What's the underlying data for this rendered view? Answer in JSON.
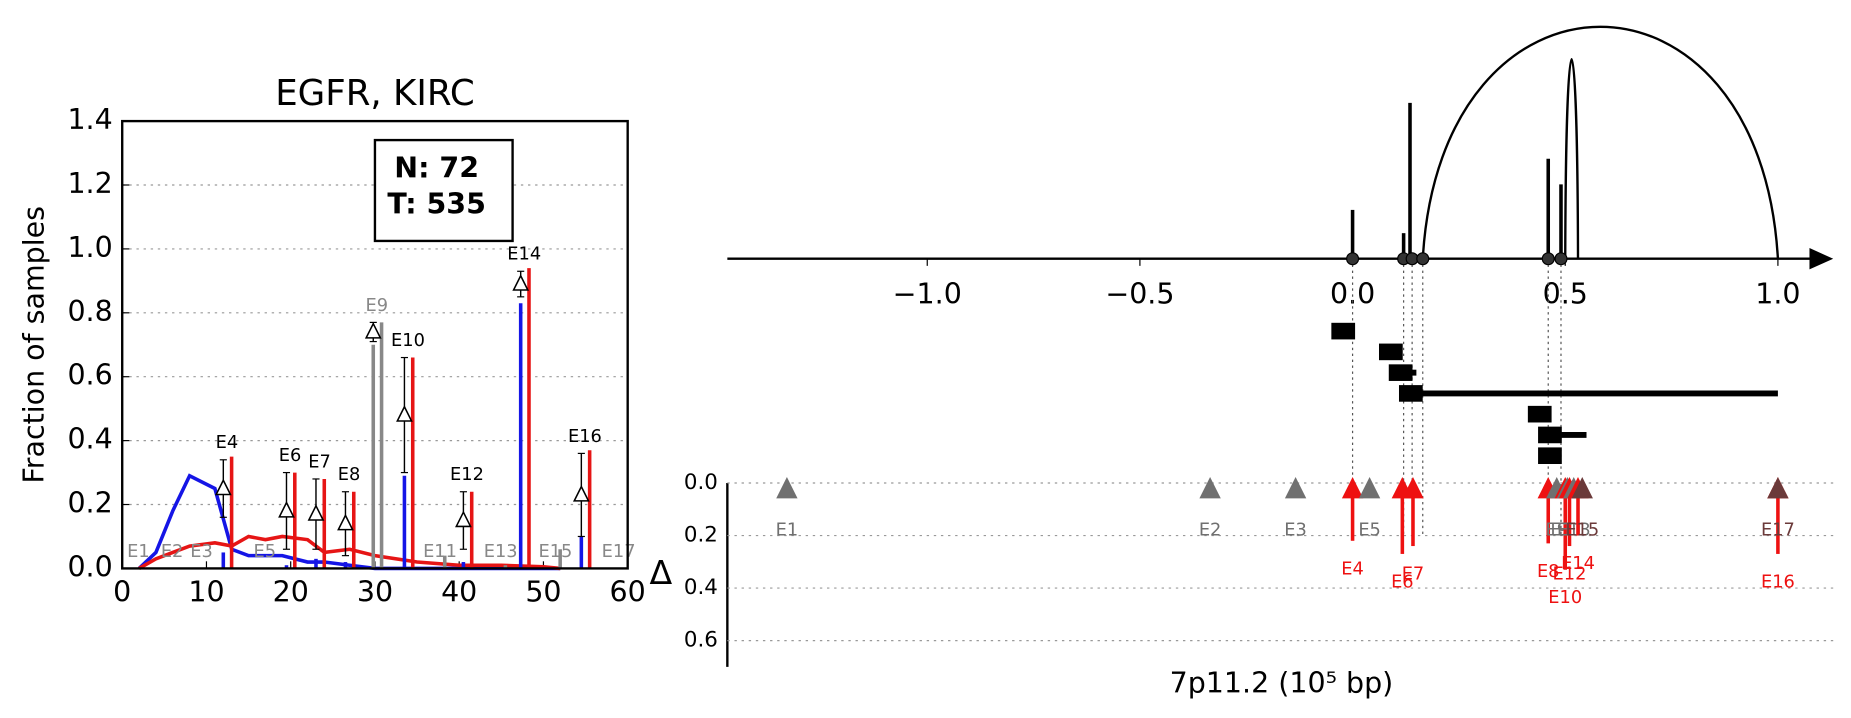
{
  "chart_data": [
    {
      "type": "exon-bar",
      "title": "EGFR, KIRC",
      "ylabel": "Fraction of samples",
      "annotation": [
        "N: 72",
        "T: 535"
      ],
      "xlim": [
        0,
        60
      ],
      "xticks": [
        0,
        10,
        20,
        30,
        40,
        50,
        60
      ],
      "ylim": [
        0,
        1.4
      ],
      "yticks": [
        {
          "value": 0,
          "label": "0.0"
        },
        0.2,
        0.4,
        0.6,
        0.8,
        {
          "value": 1,
          "label": "1.0"
        },
        1.2,
        1.4
      ],
      "grid": true,
      "x": [
        2,
        4,
        6,
        8,
        11,
        13,
        15,
        17,
        19,
        22,
        24,
        27,
        30,
        35,
        40,
        45,
        50,
        52
      ],
      "series": [
        {
          "color": "#1515e6",
          "values": [
            0,
            0.05,
            0.18,
            0.29,
            0.25,
            0.06,
            0.04,
            0.04,
            0.04,
            0.02,
            0.02,
            0.01,
            0,
            0,
            0,
            0,
            0,
            0
          ]
        },
        {
          "color": "#e61515",
          "values": [
            0,
            0.03,
            0.05,
            0.07,
            0.08,
            0.07,
            0.1,
            0.09,
            0.1,
            0.09,
            0.05,
            0.06,
            0.04,
            0.02,
            0.01,
            0.01,
            0.005,
            0
          ]
        }
      ],
      "exon_colors": {
        "normal": "#1515e6",
        "tumor": "#e61515",
        "neutral": "#888888"
      },
      "exons": [
        {
          "name": "E1",
          "x": 1.5,
          "significant": false,
          "normal": 0,
          "tumor": 0,
          "marker": null,
          "err": null
        },
        {
          "name": "E2",
          "x": 5.5,
          "significant": false,
          "normal": 0,
          "tumor": 0,
          "marker": null,
          "err": null
        },
        {
          "name": "E3",
          "x": 9,
          "significant": false,
          "normal": 0,
          "tumor": 0,
          "marker": null,
          "err": null
        },
        {
          "name": "E4",
          "x": 12,
          "significant": true,
          "normal": 0.05,
          "tumor": 0.35,
          "marker": 0.25,
          "err": 0.09
        },
        {
          "name": "E5",
          "x": 16.5,
          "significant": false,
          "normal": 0,
          "tumor": 0,
          "marker": null,
          "err": null
        },
        {
          "name": "E6",
          "x": 19.5,
          "significant": true,
          "normal": 0.01,
          "tumor": 0.3,
          "marker": 0.18,
          "err": 0.12
        },
        {
          "name": "E7",
          "x": 23,
          "significant": true,
          "normal": 0.03,
          "tumor": 0.28,
          "marker": 0.17,
          "err": 0.11
        },
        {
          "name": "E8",
          "x": 26.5,
          "significant": true,
          "normal": 0.02,
          "tumor": 0.24,
          "marker": 0.14,
          "err": 0.1
        },
        {
          "name": "E9",
          "x": 29.8,
          "significant": false,
          "normal": 0.7,
          "tumor": 0.77,
          "marker": 0.74,
          "err": 0.03
        },
        {
          "name": "E10",
          "x": 33.5,
          "significant": true,
          "normal": 0.29,
          "tumor": 0.66,
          "marker": 0.48,
          "err": 0.18
        },
        {
          "name": "E11",
          "x": 37.3,
          "significant": false,
          "normal": 0,
          "tumor": 0.04,
          "marker": null,
          "err": null
        },
        {
          "name": "E12",
          "x": 40.5,
          "significant": true,
          "normal": 0.02,
          "tumor": 0.24,
          "marker": 0.15,
          "err": 0.09
        },
        {
          "name": "E13",
          "x": 44.5,
          "significant": false,
          "normal": 0,
          "tumor": 0.01,
          "marker": null,
          "err": null
        },
        {
          "name": "E14",
          "x": 47.3,
          "significant": true,
          "normal": 0.83,
          "tumor": 0.94,
          "marker": 0.89,
          "err": 0.04
        },
        {
          "name": "E15",
          "x": 51,
          "significant": false,
          "normal": 0,
          "tumor": 0.06,
          "marker": null,
          "err": null
        },
        {
          "name": "E16",
          "x": 54.5,
          "significant": true,
          "normal": 0.1,
          "tumor": 0.37,
          "marker": 0.23,
          "err": 0.13
        },
        {
          "name": "E17",
          "x": 58.5,
          "significant": false,
          "normal": 0,
          "tumor": 0,
          "marker": null,
          "err": null
        }
      ]
    },
    {
      "type": "exon-map",
      "xlabel": "7p11.2 (10⁵ bp)",
      "ylabel": "Δ",
      "xlim": [
        -1.47,
        1.13
      ],
      "xticks": [
        {
          "value": -1,
          "label": "−1.0"
        },
        {
          "value": -0.5,
          "label": "−0.5"
        },
        {
          "value": 0,
          "label": "0.0"
        },
        0.5,
        {
          "value": 1,
          "label": "1.0"
        }
      ],
      "ylim": [
        0,
        0.7
      ],
      "yticks": [
        {
          "value": 0,
          "label": "0.0"
        },
        0.2,
        0.4,
        0.6
      ],
      "grid": true,
      "arcs": [
        {
          "start": 0.165,
          "end": 1.0,
          "height": 1.0
        },
        {
          "start": 0.5,
          "end": 0.53,
          "height": 0.86
        }
      ],
      "peaks": [
        {
          "x": 0.0,
          "height": 0.21
        },
        {
          "x": 0.12,
          "height": 0.11
        },
        {
          "x": 0.135,
          "height": 0.67
        },
        {
          "x": 0.46,
          "height": 0.43
        },
        {
          "x": 0.49,
          "height": 0.32
        }
      ],
      "dots": [
        0.0,
        0.12,
        0.14,
        0.165,
        0.46,
        0.49
      ],
      "intervals": [
        {
          "start": -0.022,
          "end": -0.022
        },
        {
          "start": 0.09,
          "end": 0.09
        },
        {
          "start": 0.113,
          "end": 0.15
        },
        {
          "start": 0.137,
          "end": 1.0
        },
        {
          "start": 0.44,
          "end": 0.44
        },
        {
          "start": 0.464,
          "end": 0.55
        },
        {
          "start": 0.464,
          "end": 0.464
        }
      ],
      "exon_colors": {
        "significant": "#ee1111",
        "neutral": "#707070",
        "dark": "#6b3a3a"
      },
      "exons": [
        {
          "name": "E1",
          "x": -1.33,
          "delta": null,
          "kind": "neutral"
        },
        {
          "name": "E2",
          "x": -0.335,
          "delta": null,
          "kind": "neutral"
        },
        {
          "name": "E3",
          "x": -0.134,
          "delta": null,
          "kind": "neutral"
        },
        {
          "name": "E4",
          "x": 0.0,
          "delta": 0.22,
          "kind": "significant"
        },
        {
          "name": "E5",
          "x": 0.04,
          "delta": null,
          "kind": "neutral"
        },
        {
          "name": "E6",
          "x": 0.117,
          "delta": 0.27,
          "kind": "significant"
        },
        {
          "name": "E7",
          "x": 0.142,
          "delta": 0.24,
          "kind": "significant"
        },
        {
          "name": "E8",
          "x": 0.46,
          "delta": 0.23,
          "kind": "significant"
        },
        {
          "name": "E9",
          "x": 0.48,
          "delta": null,
          "kind": "neutral"
        },
        {
          "name": "E10",
          "x": 0.5,
          "delta": 0.33,
          "kind": "significant"
        },
        {
          "name": "E11",
          "x": 0.505,
          "delta": null,
          "kind": "neutral"
        },
        {
          "name": "E12",
          "x": 0.51,
          "delta": 0.24,
          "kind": "significant"
        },
        {
          "name": "E13",
          "x": 0.52,
          "delta": null,
          "kind": "neutral"
        },
        {
          "name": "E14",
          "x": 0.53,
          "delta": 0.2,
          "kind": "significant"
        },
        {
          "name": "E15",
          "x": 0.54,
          "delta": null,
          "kind": "dark"
        },
        {
          "name": "E16",
          "x": 1.0,
          "delta": 0.27,
          "kind": "significant"
        },
        {
          "name": "E17",
          "x": 1.0,
          "delta": null,
          "kind": "dark"
        }
      ]
    }
  ]
}
